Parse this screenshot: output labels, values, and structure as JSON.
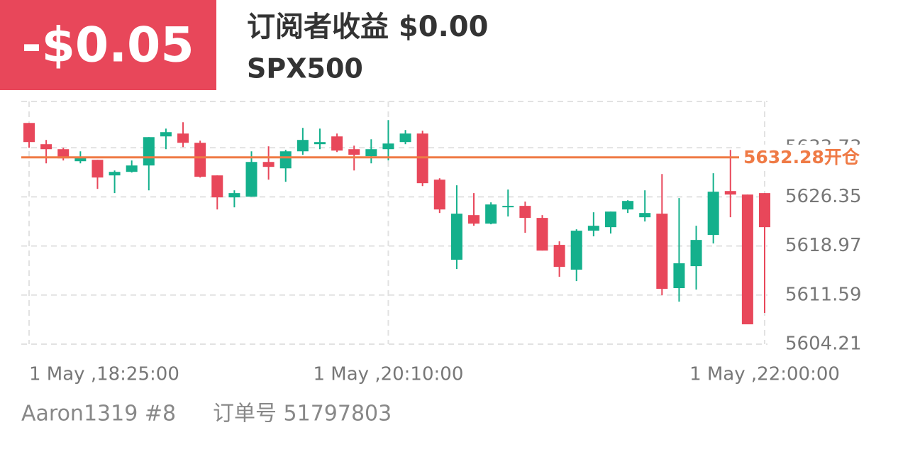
{
  "header": {
    "pnl": "-$0.05",
    "subscriber_income": "订阅者收益 $0.00",
    "symbol": "SPX500"
  },
  "footer": {
    "account": "Aaron1319 #8",
    "order": "订单号 51797803"
  },
  "chart_data": {
    "type": "candlestick",
    "categories": [
      "1 May ,18:25:00",
      null,
      null,
      null,
      null,
      null,
      null,
      null,
      null,
      null,
      null,
      null,
      null,
      null,
      null,
      null,
      null,
      null,
      null,
      null,
      null,
      "1 May ,20:10:00",
      null,
      null,
      null,
      null,
      null,
      null,
      null,
      null,
      null,
      null,
      null,
      null,
      null,
      null,
      null,
      null,
      null,
      null,
      null,
      null,
      null,
      "1 May ,22:00:00"
    ],
    "open": [
      5637.45,
      5634.26,
      5633.51,
      5631.7,
      5631.91,
      5629.57,
      5630.1,
      5631.06,
      5635.43,
      5635.86,
      5634.47,
      5629.57,
      5626.27,
      5626.37,
      5631.59,
      5630.63,
      5633.19,
      5634.26,
      5635.43,
      5633.51,
      5632.45,
      5633.51,
      5634.58,
      5635.86,
      5628.93,
      5616.89,
      5623.6,
      5622.32,
      5624.88,
      5624.99,
      5623.18,
      5619.13,
      5615.4,
      5621.26,
      5621.79,
      5624.45,
      5623.28,
      5623.82,
      5612.63,
      5615.93,
      5620.62,
      5627.22,
      5626.69,
      5626.91
    ],
    "high": [
      5637.45,
      5634.9,
      5633.72,
      5633.19,
      5631.91,
      5630.31,
      5631.81,
      5635.32,
      5636.6,
      5637.56,
      5634.79,
      5629.57,
      5627.33,
      5633.19,
      5633.94,
      5633.4,
      5636.71,
      5636.6,
      5635.86,
      5634.04,
      5635.0,
      5637.88,
      5636.39,
      5636.28,
      5629.14,
      5628.08,
      5626.91,
      5625.52,
      5627.44,
      5625.63,
      5623.6,
      5619.66,
      5621.47,
      5624.03,
      5624.13,
      5625.84,
      5627.33,
      5629.78,
      5626.16,
      5622.0,
      5629.89,
      5633.4,
      5626.69,
      5626.91
    ],
    "low": [
      5633.72,
      5631.38,
      5631.81,
      5631.38,
      5627.54,
      5626.91,
      5630.0,
      5627.33,
      5633.51,
      5633.83,
      5629.25,
      5624.45,
      5624.77,
      5626.37,
      5628.93,
      5628.61,
      5632.66,
      5633.51,
      5633.08,
      5630.31,
      5631.38,
      5631.81,
      5634.26,
      5627.97,
      5623.92,
      5615.5,
      5622.0,
      5622.22,
      5623.39,
      5620.94,
      5618.27,
      5614.33,
      5613.69,
      5620.41,
      5620.83,
      5623.92,
      5622.64,
      5611.56,
      5610.6,
      5612.41,
      5619.34,
      5623.28,
      5607.19,
      5608.9
    ],
    "close": [
      5634.58,
      5633.51,
      5632.13,
      5632.23,
      5629.25,
      5630.1,
      5631.06,
      5635.32,
      5636.07,
      5634.47,
      5629.36,
      5626.27,
      5626.91,
      5631.59,
      5630.85,
      5633.19,
      5634.9,
      5634.58,
      5633.3,
      5632.66,
      5633.51,
      5634.36,
      5635.86,
      5628.4,
      5624.45,
      5623.82,
      5622.32,
      5625.2,
      5624.99,
      5623.18,
      5618.27,
      5615.82,
      5621.26,
      5622.0,
      5624.13,
      5625.73,
      5623.92,
      5612.52,
      5616.36,
      5619.87,
      5627.12,
      5626.69,
      5607.19,
      5621.79
    ],
    "up_color": "#14b08c",
    "down_color": "#e8475a",
    "ylim": [
      5604.21,
      5640.68
    ],
    "yticks": [
      5604.21,
      5611.59,
      5618.97,
      5626.35,
      5633.73
    ],
    "grid": true,
    "reference_line": {
      "value": 5632.28,
      "label": "5632.28开仓",
      "color": "#ef7a45"
    }
  }
}
